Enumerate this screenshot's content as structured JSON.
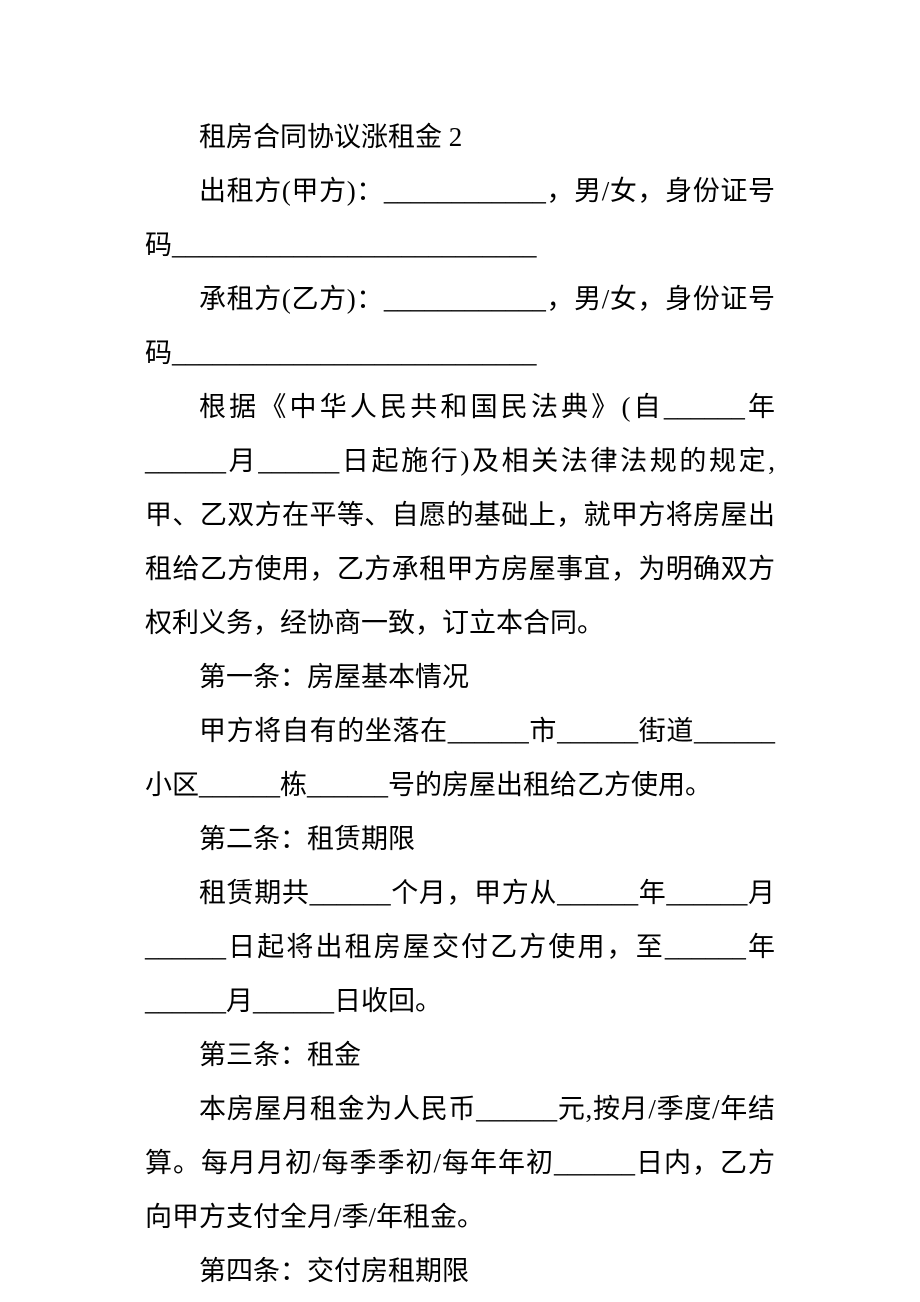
{
  "font_size": 27,
  "line_height": 2.0,
  "text_color": "#000000",
  "background_color": "#ffffff",
  "paragraphs": {
    "p1": "租房合同协议涨租金 2",
    "p2": "出租方(甲方)：____________，男/女，身份证号码___________________________",
    "p3": "承租方(乙方)：____________，男/女，身份证号码___________________________",
    "p4": "根据《中华人民共和国民法典》(自______年______月______日起施行)及相关法律法规的规定,甲、乙双方在平等、自愿的基础上，就甲方将房屋出租给乙方使用，乙方承租甲方房屋事宜，为明确双方权利义务，经协商一致，订立本合同。",
    "p5": "第一条：房屋基本情况",
    "p6": " 甲方将自有的坐落在______市______街道______小区______栋______号的房屋出租给乙方使用。",
    "p7": "第二条：租赁期限",
    "p8": "租赁期共______个月，甲方从______年______月______日起将出租房屋交付乙方使用，至______年______月______日收回。",
    "p9": "第三条：租金",
    "p10": "本房屋月租金为人民币______元,按月/季度/年结算。每月月初/每季季初/每年年初______日内，乙方向甲方支付全月/季/年租金。",
    "p11": "第四条：交付房租期限"
  }
}
